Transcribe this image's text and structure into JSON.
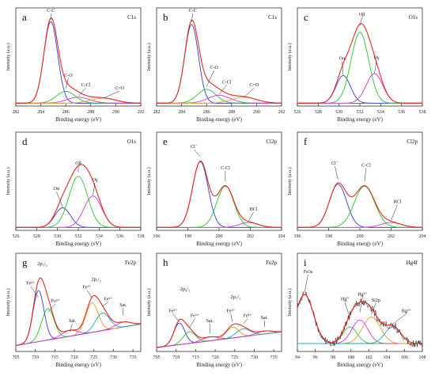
{
  "colors": {
    "envelope": "#e8281f",
    "raw": "#111111",
    "c1": "#2f3fd0",
    "c2": "#27c427",
    "c3": "#d238d2",
    "c4": "#e69a2a",
    "c5": "#1aa7c7",
    "baseline": "#222222"
  },
  "chart_data": [
    {
      "type": "line",
      "panel": "a",
      "title": "C1s",
      "xlabel": "Binding energy (eV)",
      "ylabel": "Intensity (a.u.)",
      "xlim": [
        282,
        292
      ],
      "xticks": [
        282,
        284,
        286,
        288,
        290,
        292
      ],
      "baseline": 0.03,
      "raw": false,
      "peaks": [
        {
          "name": "C-C",
          "center": 284.8,
          "height": 0.83,
          "width": 0.55,
          "color_key": "c1",
          "label_x": 284.8,
          "label_y": 0.96,
          "arrow_y": 0.88
        },
        {
          "name": "C-O",
          "center": 286.0,
          "height": 0.12,
          "width": 0.75,
          "color_key": "c2",
          "label_x": 286.2,
          "label_y": 0.3,
          "arrow_y": 0.18
        },
        {
          "name": "C-Cl",
          "center": 287.0,
          "height": 0.06,
          "width": 0.9,
          "color_key": "c3",
          "label_x": 287.6,
          "label_y": 0.2,
          "arrow_y": 0.1
        },
        {
          "name": "C=O",
          "center": 289.0,
          "height": 0.05,
          "width": 1.0,
          "color_key": "c4",
          "label_x": 290.3,
          "label_y": 0.17,
          "arrow_y": 0.08
        }
      ]
    },
    {
      "type": "line",
      "panel": "b",
      "title": "C1s",
      "xlabel": "Binding energy (eV)",
      "ylabel": "Intensity (a.u.)",
      "xlim": [
        282,
        292
      ],
      "xticks": [
        282,
        284,
        286,
        288,
        290,
        292
      ],
      "baseline": 0.03,
      "raw": false,
      "peaks": [
        {
          "name": "C-C",
          "center": 284.8,
          "height": 0.8,
          "width": 0.55,
          "color_key": "c1",
          "label_x": 284.9,
          "label_y": 0.96,
          "arrow_y": 0.86
        },
        {
          "name": "C-O",
          "center": 286.0,
          "height": 0.14,
          "width": 0.75,
          "color_key": "c2",
          "label_x": 286.6,
          "label_y": 0.38,
          "arrow_y": 0.2
        },
        {
          "name": "C-Cl",
          "center": 287.0,
          "height": 0.08,
          "width": 0.9,
          "color_key": "c3",
          "label_x": 287.6,
          "label_y": 0.23,
          "arrow_y": 0.12
        },
        {
          "name": "C=O",
          "center": 289.0,
          "height": 0.06,
          "width": 1.0,
          "color_key": "c4",
          "label_x": 289.8,
          "label_y": 0.2,
          "arrow_y": 0.09
        }
      ]
    },
    {
      "type": "line",
      "panel": "c",
      "title": "O1s",
      "xlabel": "Binding energy (eV)",
      "ylabel": "Intensity (a.u.)",
      "xlim": [
        526,
        538
      ],
      "xticks": [
        526,
        528,
        530,
        532,
        534,
        536,
        538
      ],
      "baseline": 0.03,
      "raw": false,
      "peaks": [
        {
          "name": "Oα",
          "center": 530.4,
          "height": 0.28,
          "width": 0.7,
          "color_key": "c1",
          "label_x": 530.3,
          "label_y": 0.47,
          "arrow_y": 0.31
        },
        {
          "name": "Oβ",
          "center": 532.0,
          "height": 0.72,
          "width": 0.85,
          "color_key": "c2",
          "label_x": 532.2,
          "label_y": 0.92,
          "arrow_y": 0.82
        },
        {
          "name": "Oγ",
          "center": 533.4,
          "height": 0.3,
          "width": 0.8,
          "color_key": "c3",
          "label_x": 533.6,
          "label_y": 0.48,
          "arrow_y": 0.33
        }
      ]
    },
    {
      "type": "line",
      "panel": "d",
      "title": "O1s",
      "xlabel": "Binding energy (eV)",
      "ylabel": "Intensity (a.u.)",
      "xlim": [
        526,
        538
      ],
      "xticks": [
        526,
        528,
        530,
        532,
        534,
        536,
        538
      ],
      "baseline": 0.03,
      "raw": false,
      "peaks": [
        {
          "name": "Oα",
          "center": 530.5,
          "height": 0.2,
          "width": 0.75,
          "color_key": "c1",
          "label_x": 529.9,
          "label_y": 0.41,
          "arrow_y": 0.24
        },
        {
          "name": "Oβ",
          "center": 532.0,
          "height": 0.52,
          "width": 0.9,
          "color_key": "c2",
          "label_x": 532.0,
          "label_y": 0.67,
          "arrow_y": 0.59
        },
        {
          "name": "Oγ",
          "center": 533.4,
          "height": 0.32,
          "width": 0.85,
          "color_key": "c3",
          "label_x": 533.6,
          "label_y": 0.5,
          "arrow_y": 0.36
        }
      ]
    },
    {
      "type": "line",
      "panel": "e",
      "title": "Cl2p",
      "xlabel": "Binding energy (eV)",
      "ylabel": "Intensity (a.u.)",
      "xlim": [
        196,
        204
      ],
      "xticks": [
        196,
        198,
        200,
        202,
        204
      ],
      "baseline": 0.03,
      "raw": false,
      "peaks": [
        {
          "name": "Cl⁻",
          "center": 198.8,
          "height": 0.67,
          "width": 0.5,
          "color_key": "c1",
          "label_x": 198.4,
          "label_y": 0.84,
          "arrow_y": 0.75
        },
        {
          "name": "C-Cl",
          "center": 200.4,
          "height": 0.42,
          "width": 0.55,
          "color_key": "c2",
          "label_x": 200.4,
          "label_y": 0.62,
          "arrow_y": 0.5
        },
        {
          "name": "HCl",
          "center": 201.9,
          "height": 0.05,
          "width": 0.6,
          "color_key": "c3",
          "label_x": 202.2,
          "label_y": 0.2,
          "arrow_y": 0.1
        }
      ]
    },
    {
      "type": "line",
      "panel": "f",
      "title": "Cl2p",
      "xlabel": "Binding energy (eV)",
      "ylabel": "Intensity (a.u.)",
      "xlim": [
        196,
        204
      ],
      "xticks": [
        196,
        198,
        200,
        202,
        204
      ],
      "baseline": 0.03,
      "raw": false,
      "peaks": [
        {
          "name": "Cl⁻",
          "center": 198.6,
          "height": 0.44,
          "width": 0.55,
          "color_key": "c1",
          "label_x": 198.4,
          "label_y": 0.67,
          "arrow_y": 0.52
        },
        {
          "name": "C-Cl",
          "center": 200.3,
          "height": 0.42,
          "width": 0.65,
          "color_key": "c2",
          "label_x": 200.4,
          "label_y": 0.65,
          "arrow_y": 0.5
        },
        {
          "name": "HCl",
          "center": 202.0,
          "height": 0.05,
          "width": 0.65,
          "color_key": "c3",
          "label_x": 202.4,
          "label_y": 0.28,
          "arrow_y": 0.1
        }
      ]
    },
    {
      "type": "line",
      "panel": "g",
      "title": "Fe2p",
      "xlabel": "Binding energy (eV)",
      "ylabel": "Intensity (a.u.)",
      "xlim": [
        705,
        737
      ],
      "xticks": [
        705,
        710,
        715,
        720,
        725,
        730,
        735
      ],
      "baseline_ramp": [
        0.06,
        0.28
      ],
      "raw": false,
      "peak_labels": [
        {
          "text": "2p₃/₂",
          "x": 711.8,
          "y": 0.88
        },
        {
          "text": "2p₁/₂",
          "x": 725.6,
          "y": 0.72
        }
      ],
      "peaks": [
        {
          "name": "Fe²⁺",
          "center": 710.8,
          "height": 0.52,
          "width": 1.4,
          "color_key": "c1",
          "label_x": 708.8,
          "label_y": 0.68,
          "arrow_y": 0.55
        },
        {
          "name": "Fe³⁺",
          "center": 713.2,
          "height": 0.32,
          "width": 1.6,
          "color_key": "c2",
          "label_x": 715.2,
          "label_y": 0.5,
          "arrow_y": 0.4
        },
        {
          "name": "Sat.",
          "center": 718.8,
          "height": 0.06,
          "width": 2.0,
          "color_key": "c3",
          "label_x": 719.5,
          "label_y": 0.3,
          "arrow_y": 0.2
        },
        {
          "name": "Fe²⁺",
          "center": 724.5,
          "height": 0.3,
          "width": 1.6,
          "color_key": "c4",
          "label_x": 723.2,
          "label_y": 0.64,
          "arrow_y": 0.55
        },
        {
          "name": "Fe³⁺",
          "center": 727.2,
          "height": 0.18,
          "width": 1.8,
          "color_key": "c5",
          "label_x": 728.7,
          "label_y": 0.52,
          "arrow_y": 0.46
        },
        {
          "name": "Sat.",
          "center": 732.5,
          "height": 0.05,
          "width": 2.0,
          "color_key": "c3",
          "label_x": 732.5,
          "label_y": 0.46,
          "arrow_y": 0.37
        }
      ]
    },
    {
      "type": "line",
      "panel": "h",
      "title": "Fe2p",
      "xlabel": "Binding energy (eV)",
      "ylabel": "Intensity (a.u.)",
      "xlim": [
        705,
        737
      ],
      "xticks": [
        705,
        710,
        715,
        720,
        725,
        730,
        735
      ],
      "baseline_ramp": [
        0.04,
        0.2
      ],
      "raw": false,
      "peak_labels": [
        {
          "text": "2p₃/₂",
          "x": 712.3,
          "y": 0.62
        },
        {
          "text": "2p₁/₂",
          "x": 725.2,
          "y": 0.54
        }
      ],
      "peaks": [
        {
          "name": "Fe²⁺",
          "center": 710.8,
          "height": 0.22,
          "width": 1.4,
          "color_key": "c1",
          "label_x": 709.2,
          "label_y": 0.4,
          "arrow_y": 0.3
        },
        {
          "name": "Fe³⁺",
          "center": 713.4,
          "height": 0.12,
          "width": 1.6,
          "color_key": "c2",
          "label_x": 714.8,
          "label_y": 0.35,
          "arrow_y": 0.24
        },
        {
          "name": "Sat.",
          "center": 718.6,
          "height": 0.04,
          "width": 2.0,
          "color_key": "c3",
          "label_x": 718.6,
          "label_y": 0.3,
          "arrow_y": 0.18
        },
        {
          "name": "Fe²⁺",
          "center": 724.4,
          "height": 0.11,
          "width": 1.6,
          "color_key": "c4",
          "label_x": 724.0,
          "label_y": 0.4,
          "arrow_y": 0.3
        },
        {
          "name": "Fe³⁺",
          "center": 727.2,
          "height": 0.08,
          "width": 1.8,
          "color_key": "c5",
          "label_x": 728.3,
          "label_y": 0.35,
          "arrow_y": 0.28
        },
        {
          "name": "Sat.",
          "center": 732.6,
          "height": 0.03,
          "width": 2.0,
          "color_key": "c3",
          "label_x": 732.6,
          "label_y": 0.33,
          "arrow_y": 0.25
        }
      ]
    },
    {
      "type": "line",
      "panel": "i",
      "title": "Hg4f",
      "xlabel": "Binding energy (eV)",
      "ylabel": "Intensity (a.u.)",
      "xlim": [
        94,
        108
      ],
      "xticks": [
        94,
        96,
        98,
        100,
        102,
        104,
        106,
        108
      ],
      "baseline_ramp": [
        0.08,
        0.08
      ],
      "raw": true,
      "raw_noise": 0.04,
      "peaks": [
        {
          "name": "Fe3s",
          "center": 94.8,
          "height": 0.5,
          "width": 1.0,
          "color_key": "c1",
          "label_x": 95.2,
          "label_y": 0.8,
          "arrow_y": 0.6
        },
        {
          "name": "Hg⁰",
          "center": 99.9,
          "height": 0.17,
          "width": 0.8,
          "color_key": "c2",
          "label_x": 99.3,
          "label_y": 0.52,
          "arrow_y": 0.34
        },
        {
          "name": "Hg²⁺",
          "center": 101.0,
          "height": 0.24,
          "width": 0.9,
          "color_key": "c3",
          "label_x": 101.3,
          "label_y": 0.57,
          "arrow_y": 0.4
        },
        {
          "name": "Si2p",
          "center": 102.3,
          "height": 0.27,
          "width": 1.0,
          "color_key": "c4",
          "label_x": 102.8,
          "label_y": 0.51,
          "arrow_y": 0.38
        },
        {
          "name": "Hg²⁺",
          "center": 104.7,
          "height": 0.17,
          "width": 0.9,
          "color_key": "c5",
          "label_x": 106.2,
          "label_y": 0.4,
          "arrow_y": 0.28
        }
      ]
    }
  ]
}
